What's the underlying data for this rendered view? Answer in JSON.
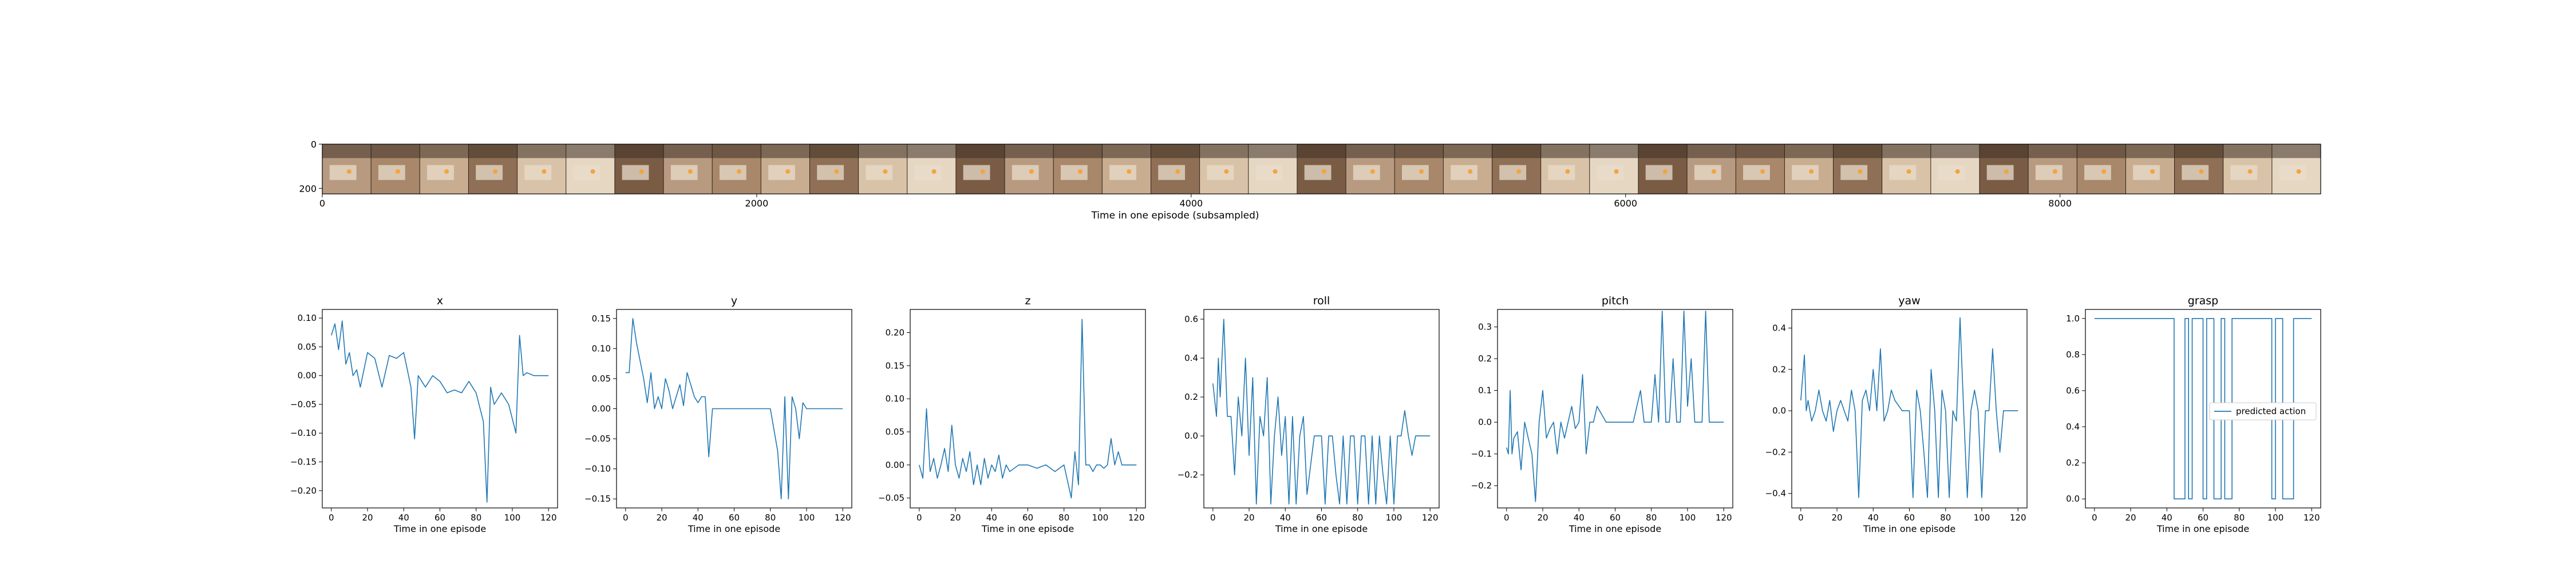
{
  "colors": {
    "line": "#1f77b4",
    "axis": "#000000",
    "background": "#ffffff"
  },
  "filmstrip": {
    "xlabel": "Time in one episode (subsampled)",
    "x_ticks": [
      0,
      2000,
      4000,
      6000,
      8000
    ],
    "y_ticks": [
      0,
      200
    ],
    "xlim": [
      0,
      9200
    ],
    "ylim": [
      0,
      225
    ],
    "frame_count": 41,
    "tones": [
      "#b89a80",
      "#a8876a",
      "#c8ad90",
      "#8f6f55",
      "#d9c3a8",
      "#e6d7c3",
      "#7a5c45"
    ]
  },
  "chart_data": [
    {
      "type": "line",
      "title": "x",
      "xlabel": "Time in one episode",
      "xlim": [
        -5,
        125
      ],
      "ylim": [
        -0.23,
        0.115
      ],
      "x_ticks": [
        0,
        20,
        40,
        60,
        80,
        100,
        120
      ],
      "y_ticks": [
        0.1,
        0.05,
        0.0,
        -0.05,
        -0.1,
        -0.15,
        -0.2
      ],
      "tick_decimals": 2,
      "series": [
        {
          "x": [
            0,
            2,
            4,
            6,
            8,
            10,
            12,
            14,
            16,
            20,
            24,
            28,
            32,
            36,
            40,
            44,
            46,
            48,
            52,
            56,
            60,
            64,
            68,
            72,
            76,
            80,
            84,
            86,
            88,
            90,
            94,
            98,
            102,
            104,
            106,
            108,
            112,
            116,
            120
          ],
          "y": [
            0.07,
            0.09,
            0.045,
            0.095,
            0.02,
            0.04,
            0.0,
            0.01,
            -0.02,
            0.04,
            0.03,
            -0.02,
            0.035,
            0.03,
            0.04,
            -0.02,
            -0.11,
            0.0,
            -0.02,
            0.0,
            -0.01,
            -0.03,
            -0.025,
            -0.03,
            -0.01,
            -0.03,
            -0.08,
            -0.22,
            -0.02,
            -0.05,
            -0.03,
            -0.05,
            -0.1,
            0.07,
            0.0,
            0.005,
            0.0,
            0.0,
            0.0
          ]
        }
      ]
    },
    {
      "type": "line",
      "title": "y",
      "xlabel": "Time in one episode",
      "xlim": [
        -5,
        125
      ],
      "ylim": [
        -0.165,
        0.165
      ],
      "x_ticks": [
        0,
        20,
        40,
        60,
        80,
        100,
        120
      ],
      "y_ticks": [
        0.15,
        0.1,
        0.05,
        0.0,
        -0.05,
        -0.1,
        -0.15
      ],
      "tick_decimals": 2,
      "series": [
        {
          "x": [
            0,
            2,
            4,
            6,
            8,
            10,
            12,
            14,
            16,
            18,
            20,
            22,
            24,
            26,
            28,
            30,
            32,
            34,
            36,
            38,
            40,
            42,
            44,
            46,
            48,
            50,
            54,
            60,
            70,
            80,
            84,
            86,
            88,
            90,
            92,
            94,
            96,
            98,
            100,
            104,
            108,
            112,
            116,
            120
          ],
          "y": [
            0.06,
            0.06,
            0.15,
            0.11,
            0.08,
            0.05,
            0.01,
            0.06,
            0.0,
            0.02,
            0.0,
            0.05,
            0.03,
            0.0,
            0.02,
            0.04,
            0.005,
            0.06,
            0.04,
            0.02,
            0.01,
            0.02,
            0.02,
            -0.08,
            0.0,
            0.0,
            0.0,
            0.0,
            0.0,
            0.0,
            -0.07,
            -0.15,
            0.02,
            -0.15,
            0.02,
            0.0,
            -0.05,
            0.01,
            0.0,
            0.0,
            0.0,
            0.0,
            0.0,
            0.0
          ]
        }
      ]
    },
    {
      "type": "line",
      "title": "z",
      "xlabel": "Time in one episode",
      "xlim": [
        -5,
        125
      ],
      "ylim": [
        -0.065,
        0.235
      ],
      "x_ticks": [
        0,
        20,
        40,
        60,
        80,
        100,
        120
      ],
      "y_ticks": [
        0.2,
        0.15,
        0.1,
        0.05,
        0.0,
        -0.05
      ],
      "tick_decimals": 2,
      "series": [
        {
          "x": [
            0,
            2,
            4,
            6,
            8,
            10,
            12,
            14,
            16,
            18,
            20,
            22,
            24,
            26,
            28,
            30,
            32,
            34,
            36,
            38,
            40,
            42,
            44,
            46,
            48,
            50,
            55,
            60,
            65,
            70,
            75,
            80,
            84,
            86,
            88,
            90,
            92,
            94,
            96,
            98,
            100,
            102,
            104,
            106,
            108,
            110,
            112,
            116,
            120
          ],
          "y": [
            0.0,
            -0.02,
            0.085,
            -0.01,
            0.01,
            -0.02,
            0.0,
            0.025,
            -0.01,
            0.06,
            0.0,
            -0.02,
            0.01,
            -0.01,
            0.02,
            -0.03,
            0.0,
            -0.03,
            0.01,
            -0.02,
            0.0,
            -0.01,
            0.015,
            -0.02,
            0.0,
            -0.01,
            0.0,
            0.0,
            -0.005,
            0.0,
            -0.01,
            0.0,
            -0.05,
            0.02,
            -0.03,
            0.22,
            0.0,
            0.0,
            -0.01,
            0.0,
            0.0,
            -0.005,
            0.0,
            0.04,
            0.0,
            0.02,
            0.0,
            0.0,
            0.0
          ]
        }
      ]
    },
    {
      "type": "line",
      "title": "roll",
      "xlabel": "Time in one episode",
      "xlim": [
        -5,
        125
      ],
      "ylim": [
        -0.37,
        0.65
      ],
      "x_ticks": [
        0,
        20,
        40,
        60,
        80,
        100,
        120
      ],
      "y_ticks": [
        0.6,
        0.4,
        0.2,
        0.0,
        -0.2
      ],
      "tick_decimals": 1,
      "series": [
        {
          "x": [
            0,
            2,
            3,
            4,
            6,
            8,
            10,
            12,
            14,
            16,
            18,
            20,
            22,
            24,
            26,
            28,
            30,
            32,
            34,
            36,
            38,
            40,
            42,
            44,
            46,
            48,
            50,
            52,
            56,
            60,
            62,
            64,
            66,
            68,
            70,
            72,
            74,
            76,
            78,
            80,
            82,
            84,
            86,
            88,
            90,
            92,
            94,
            96,
            98,
            100,
            102,
            104,
            106,
            108,
            110,
            112,
            116,
            120
          ],
          "y": [
            0.27,
            0.1,
            0.4,
            0.2,
            0.6,
            0.1,
            0.1,
            -0.2,
            0.2,
            0.0,
            0.4,
            -0.1,
            0.3,
            -0.35,
            0.1,
            0.0,
            0.3,
            -0.35,
            0.0,
            0.2,
            -0.1,
            0.1,
            -0.35,
            0.1,
            -0.35,
            0.0,
            0.1,
            -0.3,
            0.0,
            0.0,
            -0.35,
            0.0,
            0.0,
            -0.2,
            -0.35,
            0.0,
            -0.35,
            0.0,
            0.0,
            -0.35,
            0.0,
            0.0,
            -0.35,
            0.0,
            -0.35,
            0.0,
            -0.2,
            -0.35,
            0.0,
            -0.35,
            0.0,
            0.0,
            0.13,
            0.0,
            -0.1,
            0.0,
            0.0,
            0.0
          ]
        }
      ]
    },
    {
      "type": "line",
      "title": "pitch",
      "xlabel": "Time in one episode",
      "xlim": [
        -5,
        125
      ],
      "ylim": [
        -0.27,
        0.355
      ],
      "x_ticks": [
        0,
        20,
        40,
        60,
        80,
        100,
        120
      ],
      "y_ticks": [
        0.3,
        0.2,
        0.1,
        0.0,
        -0.1,
        -0.2
      ],
      "tick_decimals": 1,
      "series": [
        {
          "x": [
            0,
            1,
            2,
            3,
            4,
            6,
            8,
            10,
            12,
            14,
            16,
            18,
            20,
            22,
            24,
            26,
            28,
            30,
            32,
            34,
            36,
            38,
            40,
            42,
            44,
            46,
            48,
            50,
            55,
            60,
            65,
            70,
            74,
            76,
            78,
            80,
            82,
            84,
            86,
            88,
            90,
            92,
            94,
            96,
            98,
            100,
            102,
            104,
            106,
            108,
            110,
            112,
            116,
            120
          ],
          "y": [
            -0.08,
            -0.1,
            0.1,
            -0.1,
            -0.05,
            -0.03,
            -0.15,
            0.0,
            -0.05,
            -0.1,
            -0.25,
            0.0,
            0.1,
            -0.05,
            -0.02,
            0.0,
            -0.1,
            0.0,
            -0.05,
            0.0,
            0.05,
            -0.02,
            0.0,
            0.15,
            -0.1,
            0.0,
            0.0,
            0.05,
            0.0,
            0.0,
            0.0,
            0.0,
            0.1,
            0.0,
            0.0,
            0.0,
            0.15,
            0.0,
            0.35,
            0.0,
            0.0,
            0.2,
            0.0,
            0.0,
            0.35,
            0.05,
            0.2,
            0.0,
            0.0,
            0.0,
            0.35,
            0.0,
            0.0,
            0.0
          ]
        }
      ]
    },
    {
      "type": "line",
      "title": "yaw",
      "xlabel": "Time in one episode",
      "xlim": [
        -5,
        125
      ],
      "ylim": [
        -0.47,
        0.49
      ],
      "x_ticks": [
        0,
        20,
        40,
        60,
        80,
        100,
        120
      ],
      "y_ticks": [
        0.4,
        0.2,
        0.0,
        -0.2,
        -0.4
      ],
      "tick_decimals": 1,
      "series": [
        {
          "x": [
            0,
            2,
            3,
            4,
            6,
            8,
            10,
            12,
            14,
            16,
            18,
            20,
            22,
            24,
            26,
            28,
            30,
            32,
            34,
            36,
            38,
            40,
            42,
            44,
            46,
            48,
            50,
            52,
            56,
            60,
            62,
            64,
            66,
            68,
            70,
            72,
            74,
            76,
            78,
            80,
            82,
            84,
            86,
            88,
            90,
            92,
            94,
            96,
            98,
            100,
            102,
            104,
            106,
            108,
            110,
            112,
            116,
            120
          ],
          "y": [
            0.05,
            0.27,
            0.0,
            0.05,
            -0.05,
            0.0,
            0.1,
            0.0,
            -0.05,
            0.05,
            -0.1,
            0.0,
            0.05,
            0.0,
            -0.05,
            0.1,
            0.0,
            -0.42,
            0.05,
            0.1,
            0.0,
            0.2,
            0.0,
            0.3,
            -0.05,
            0.0,
            0.1,
            0.05,
            0.0,
            0.0,
            -0.42,
            0.1,
            0.0,
            -0.2,
            -0.42,
            0.2,
            0.0,
            -0.42,
            0.1,
            0.0,
            -0.42,
            0.0,
            -0.05,
            0.45,
            0.0,
            -0.42,
            0.0,
            0.1,
            0.0,
            -0.42,
            0.0,
            0.0,
            0.3,
            0.0,
            -0.2,
            0.0,
            0.0,
            0.0
          ]
        }
      ]
    },
    {
      "type": "line",
      "title": "grasp",
      "xlabel": "Time in one episode",
      "xlim": [
        -5,
        125
      ],
      "ylim": [
        -0.05,
        1.05
      ],
      "x_ticks": [
        0,
        20,
        40,
        60,
        80,
        100,
        120
      ],
      "y_ticks": [
        1.0,
        0.8,
        0.6,
        0.4,
        0.2,
        0.0
      ],
      "tick_decimals": 1,
      "legend": "predicted action",
      "legend_position": "center right",
      "series": [
        {
          "x": [
            0,
            44,
            44,
            50,
            50,
            52,
            52,
            54,
            54,
            60,
            60,
            62,
            62,
            66,
            66,
            70,
            70,
            72,
            72,
            76,
            76,
            98,
            98,
            100,
            100,
            104,
            104,
            110,
            110,
            112,
            112,
            120
          ],
          "y": [
            1,
            1,
            0,
            0,
            1,
            1,
            0,
            0,
            1,
            1,
            0,
            0,
            1,
            1,
            0,
            0,
            1,
            1,
            0,
            0,
            1,
            1,
            0,
            0,
            1,
            1,
            0,
            0,
            1,
            1,
            1,
            1
          ]
        }
      ]
    }
  ]
}
